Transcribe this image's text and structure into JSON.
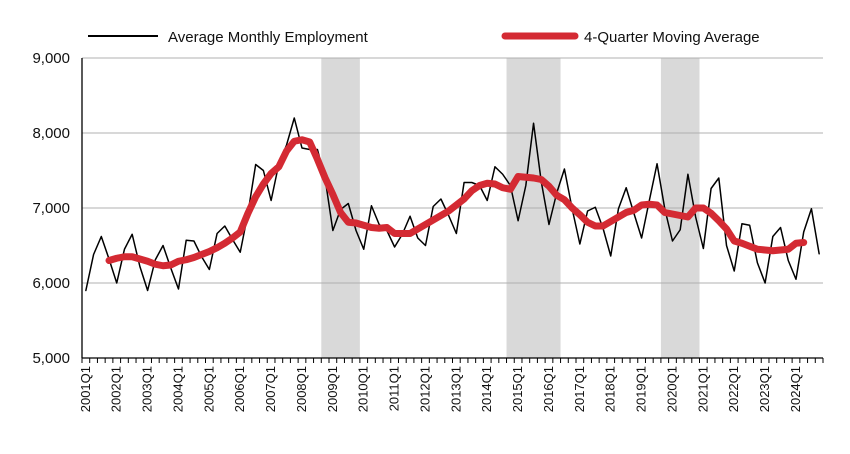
{
  "chart_data": {
    "type": "line",
    "title": "",
    "xlabel": "",
    "ylabel": "",
    "ylim": [
      5000,
      9000
    ],
    "yticks": [
      "5,000",
      "6,000",
      "7,000",
      "8,000",
      "9,000"
    ],
    "grid": "horizontal",
    "legend_position": "top",
    "colors": {
      "employment": "#000000",
      "moving_average": "#d42a33",
      "recession": "#d9d9d9"
    },
    "x_labels": [
      "2001Q1",
      "2002Q1",
      "2003Q1",
      "2004Q1",
      "2005Q1",
      "2006Q1",
      "2007Q1",
      "2008Q1",
      "2009Q1",
      "2010Q1",
      "2011Q1",
      "2012Q1",
      "2013Q1",
      "2014Q1",
      "2015Q1",
      "2016Q1",
      "2017Q1",
      "2018Q1",
      "2019Q1",
      "2020Q1",
      "2021Q1",
      "2022Q1",
      "2023Q1",
      "2024Q1"
    ],
    "recession_shading": [
      {
        "start": "2008Q4",
        "end": "2009Q4"
      },
      {
        "start": "2014Q4",
        "end": "2016Q2"
      },
      {
        "start": "2019Q4",
        "end": "2020Q4"
      }
    ],
    "series": [
      {
        "name": "Average Monthly Employment",
        "start": "2001Q1",
        "values": [
          5900,
          6380,
          6620,
          6320,
          6000,
          6450,
          6650,
          6220,
          5900,
          6310,
          6500,
          6200,
          5920,
          6570,
          6560,
          6350,
          6180,
          6660,
          6760,
          6580,
          6410,
          6930,
          7580,
          7500,
          7100,
          7590,
          7840,
          8200,
          7800,
          7780,
          7780,
          7390,
          6700,
          6980,
          7060,
          6700,
          6450,
          7030,
          6780,
          6700,
          6480,
          6650,
          6890,
          6600,
          6500,
          7020,
          7120,
          6900,
          6660,
          7340,
          7340,
          7300,
          7100,
          7550,
          7450,
          7300,
          6830,
          7300,
          8130,
          7350,
          6780,
          7200,
          7520,
          6990,
          6520,
          6960,
          7010,
          6730,
          6360,
          6990,
          7270,
          6930,
          6600,
          7100,
          7590,
          6990,
          6560,
          6710,
          7450,
          6880,
          6460,
          7260,
          7400,
          6500,
          6160,
          6790,
          6770,
          6270,
          6000,
          6620,
          6740,
          6300,
          6050,
          6680,
          6990,
          6390
        ]
      },
      {
        "name": "4-Quarter Moving Average",
        "start": "2001Q4",
        "values": [
          6300,
          6330,
          6350,
          6350,
          6320,
          6290,
          6250,
          6230,
          6240,
          6290,
          6310,
          6340,
          6380,
          6420,
          6470,
          6530,
          6600,
          6680,
          6930,
          7150,
          7320,
          7460,
          7550,
          7760,
          7890,
          7910,
          7880,
          7650,
          7400,
          7180,
          6940,
          6810,
          6800,
          6770,
          6740,
          6730,
          6740,
          6660,
          6660,
          6660,
          6720,
          6780,
          6840,
          6900,
          6960,
          7040,
          7120,
          7230,
          7300,
          7330,
          7320,
          7270,
          7250,
          7420,
          7410,
          7400,
          7380,
          7290,
          7170,
          7110,
          7000,
          6910,
          6810,
          6760,
          6760,
          6820,
          6880,
          6940,
          6970,
          7040,
          7050,
          7040,
          6940,
          6920,
          6900,
          6880,
          7000,
          7000,
          6930,
          6830,
          6720,
          6560,
          6530,
          6490,
          6450,
          6440,
          6430,
          6440,
          6450,
          6530,
          6540
        ]
      }
    ]
  }
}
